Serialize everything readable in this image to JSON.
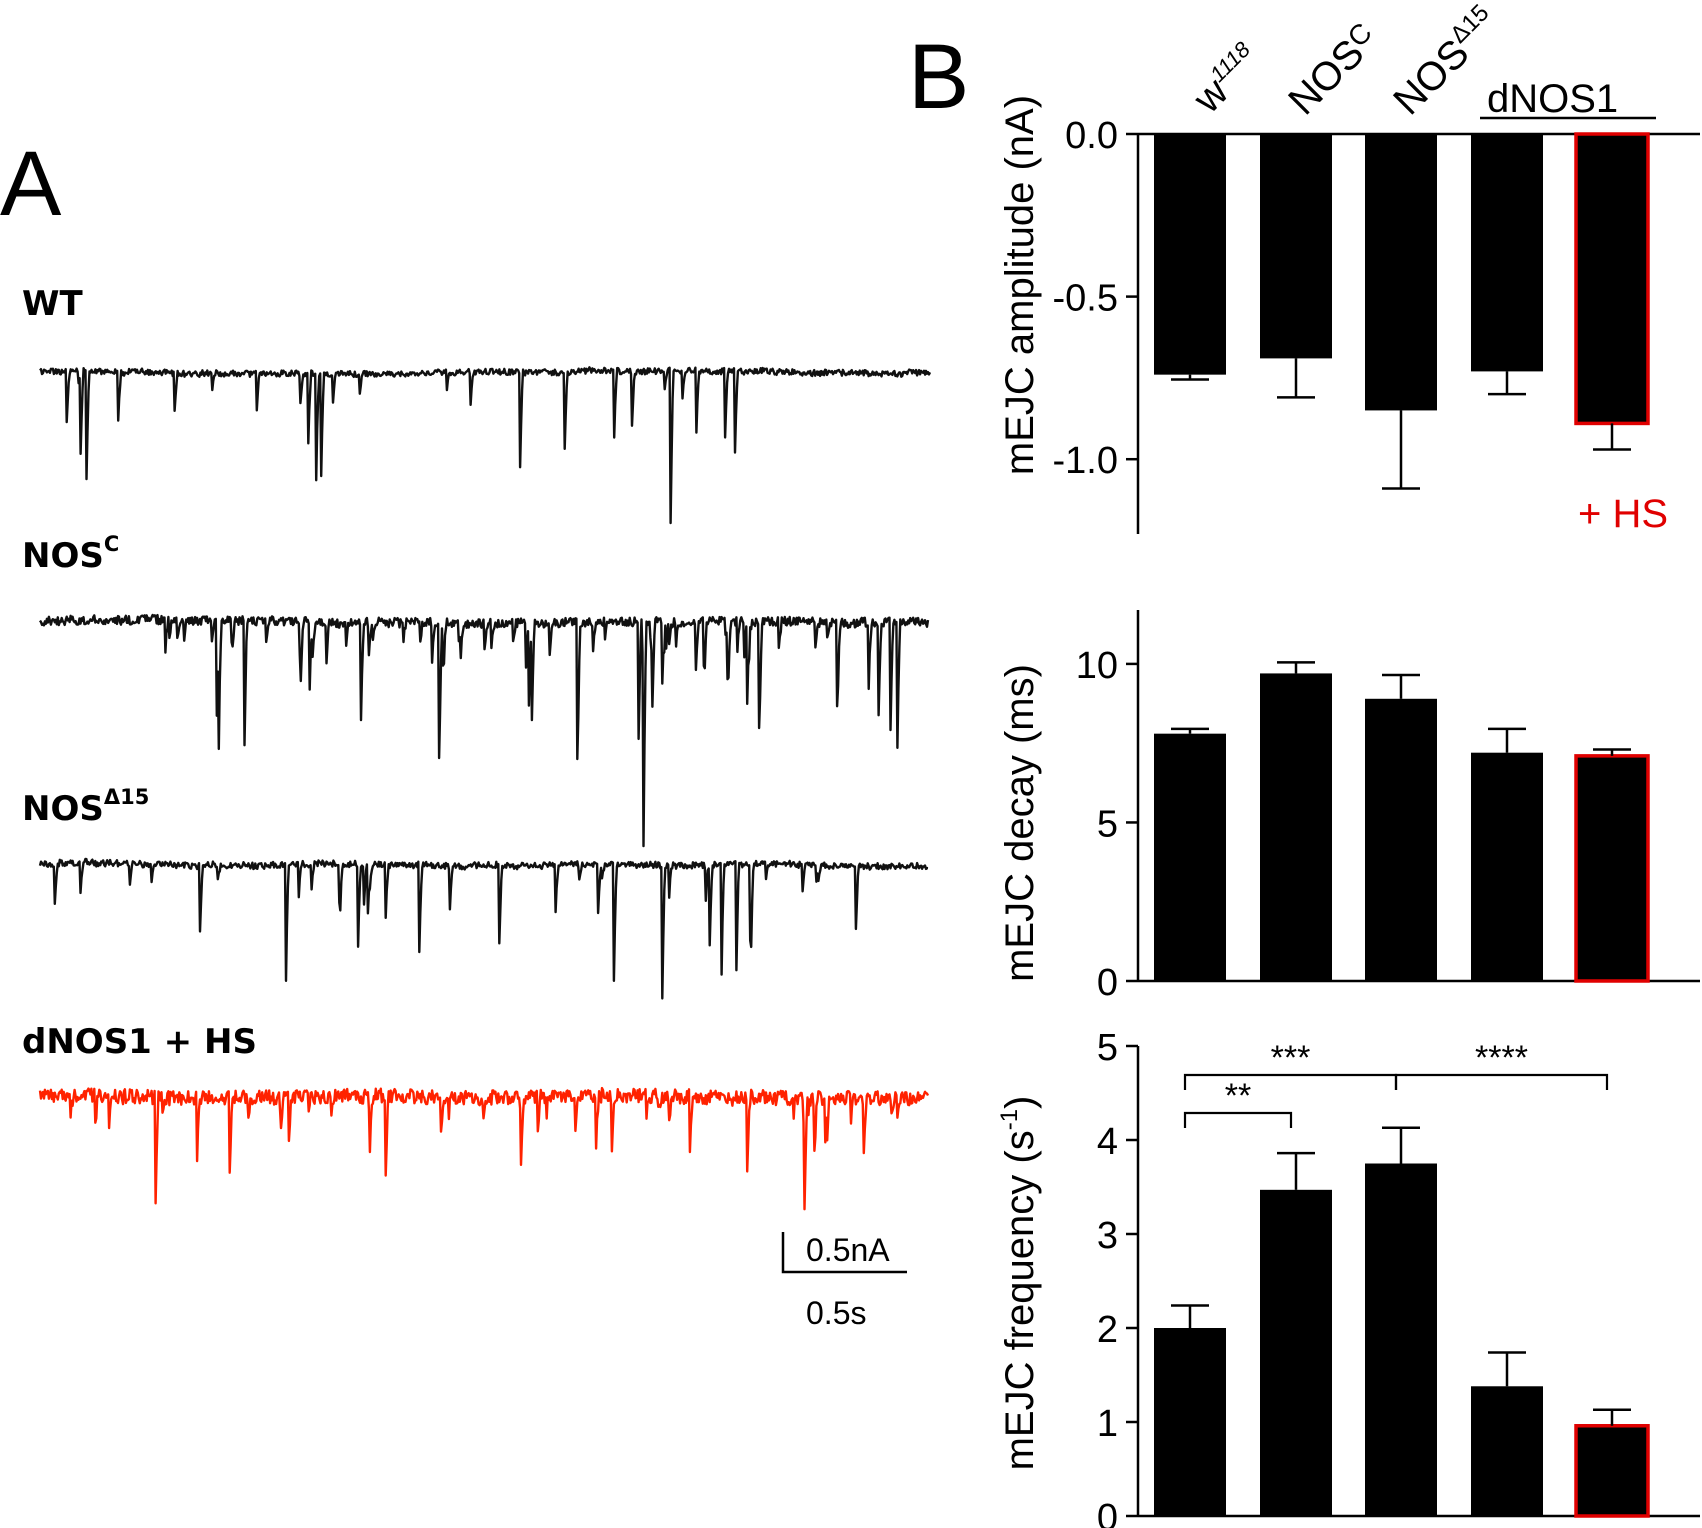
{
  "panel_a": {
    "label": "A",
    "traces": [
      {
        "name": "WT",
        "sup": "",
        "color": "#111111",
        "seed": 11,
        "noise": 3.0,
        "events": 28,
        "maxdepth": 95
      },
      {
        "name": "NOS",
        "sup": "C",
        "color": "#111111",
        "seed": 23,
        "noise": 4.5,
        "events": 75,
        "maxdepth": 125
      },
      {
        "name": "NOS",
        "sup": "Δ15",
        "color": "#111111",
        "seed": 37,
        "noise": 3.2,
        "events": 38,
        "maxdepth": 110
      },
      {
        "name": "dNOS1 + HS",
        "sup": "",
        "color": "#ff2200",
        "seed": 53,
        "noise": 7.5,
        "events": 45,
        "maxdepth": 95
      }
    ],
    "scale_bar": {
      "y_label": "0.5nA",
      "x_label": "0.5s"
    }
  },
  "panel_b": {
    "label": "B",
    "group_labels": [
      {
        "text": "w",
        "sup": "1118"
      },
      {
        "text": "NOS",
        "sup": "C"
      },
      {
        "text": "NOS",
        "sup": "Δ15"
      }
    ],
    "dnos_label": "dNOS1",
    "hs_label": "+ HS"
  },
  "chart_data": [
    {
      "type": "bar",
      "ylabel": "mEJC amplitude (nA)",
      "ylim": [
        -1.23,
        0
      ],
      "yticks": [
        0,
        -0.5,
        -1.0
      ],
      "ytick_labels": [
        "0.0",
        "-0.5",
        "-1.0"
      ],
      "categories": [
        "w1118",
        "NOSC",
        "NOSΔ15",
        "dNOS1",
        "dNOS1 + HS"
      ],
      "values": [
        -0.74,
        -0.69,
        -0.85,
        -0.73,
        -0.89
      ],
      "errors": [
        0.015,
        0.12,
        0.24,
        0.07,
        0.08
      ],
      "colors": [
        "#000000",
        "#000000",
        "#000000",
        "#000000",
        "#e00000"
      ]
    },
    {
      "type": "bar",
      "ylabel": "mEJC decay (ms)",
      "ylim": [
        0,
        11.7
      ],
      "yticks": [
        0,
        5,
        10
      ],
      "ytick_labels": [
        "0",
        "5",
        "10"
      ],
      "categories": [
        "w1118",
        "NOSC",
        "NOSΔ15",
        "dNOS1",
        "dNOS1 + HS"
      ],
      "values": [
        7.8,
        9.7,
        8.9,
        7.2,
        7.1
      ],
      "errors": [
        0.15,
        0.35,
        0.75,
        0.75,
        0.2
      ],
      "colors": [
        "#000000",
        "#000000",
        "#000000",
        "#000000",
        "#e00000"
      ]
    },
    {
      "type": "bar",
      "ylabel": "mEJC frequency (s-1)",
      "ylim": [
        0,
        5
      ],
      "yticks": [
        0,
        1,
        2,
        3,
        4,
        5
      ],
      "ytick_labels": [
        "0",
        "1",
        "2",
        "3",
        "4",
        "5"
      ],
      "categories": [
        "w1118",
        "NOSC",
        "NOSΔ15",
        "dNOS1",
        "dNOS1 + HS"
      ],
      "values": [
        2.0,
        3.47,
        3.75,
        1.38,
        0.96
      ],
      "errors": [
        0.24,
        0.39,
        0.38,
        0.36,
        0.17
      ],
      "colors": [
        "#000000",
        "#000000",
        "#000000",
        "#000000",
        "#e00000"
      ],
      "significance": [
        {
          "from": 0,
          "to": 1,
          "label": "**"
        },
        {
          "from": 0,
          "to": 2,
          "label": "***"
        },
        {
          "from": 2,
          "to": 4,
          "label": "****"
        }
      ]
    }
  ]
}
